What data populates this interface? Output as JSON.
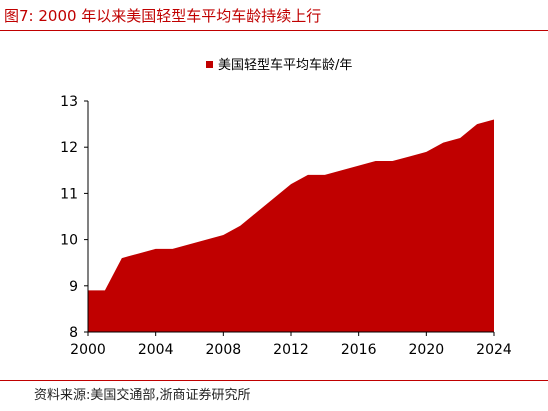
{
  "figure": {
    "title": "图7:  2000 年以来美国轻型车平均车龄持续上行",
    "source": "资料来源:美国交通部,浙商证券研究所"
  },
  "colors": {
    "accent": "#c00000",
    "area_fill": "#c00000",
    "axis": "#000000"
  },
  "chart_data": {
    "type": "area",
    "title": "",
    "xlabel": "",
    "ylabel": "",
    "x": [
      2000,
      2001,
      2002,
      2003,
      2004,
      2005,
      2006,
      2007,
      2008,
      2009,
      2010,
      2011,
      2012,
      2013,
      2014,
      2015,
      2016,
      2017,
      2018,
      2019,
      2020,
      2021,
      2022,
      2023,
      2024
    ],
    "series": [
      {
        "name": "美国轻型车平均车龄/年",
        "values": [
          8.9,
          8.9,
          9.6,
          9.7,
          9.8,
          9.8,
          9.9,
          10.0,
          10.1,
          10.3,
          10.6,
          10.9,
          11.2,
          11.4,
          11.4,
          11.5,
          11.6,
          11.7,
          11.7,
          11.8,
          11.9,
          12.1,
          12.2,
          12.5,
          12.6
        ]
      }
    ],
    "xlim": [
      2000,
      2024
    ],
    "ylim": [
      8,
      13
    ],
    "xticks": [
      "2000",
      "2004",
      "2008",
      "2012",
      "2016",
      "2020",
      "2024"
    ],
    "yticks": [
      "8",
      "9",
      "10",
      "11",
      "12",
      "13"
    ],
    "legend": "top-center",
    "grid": false
  }
}
